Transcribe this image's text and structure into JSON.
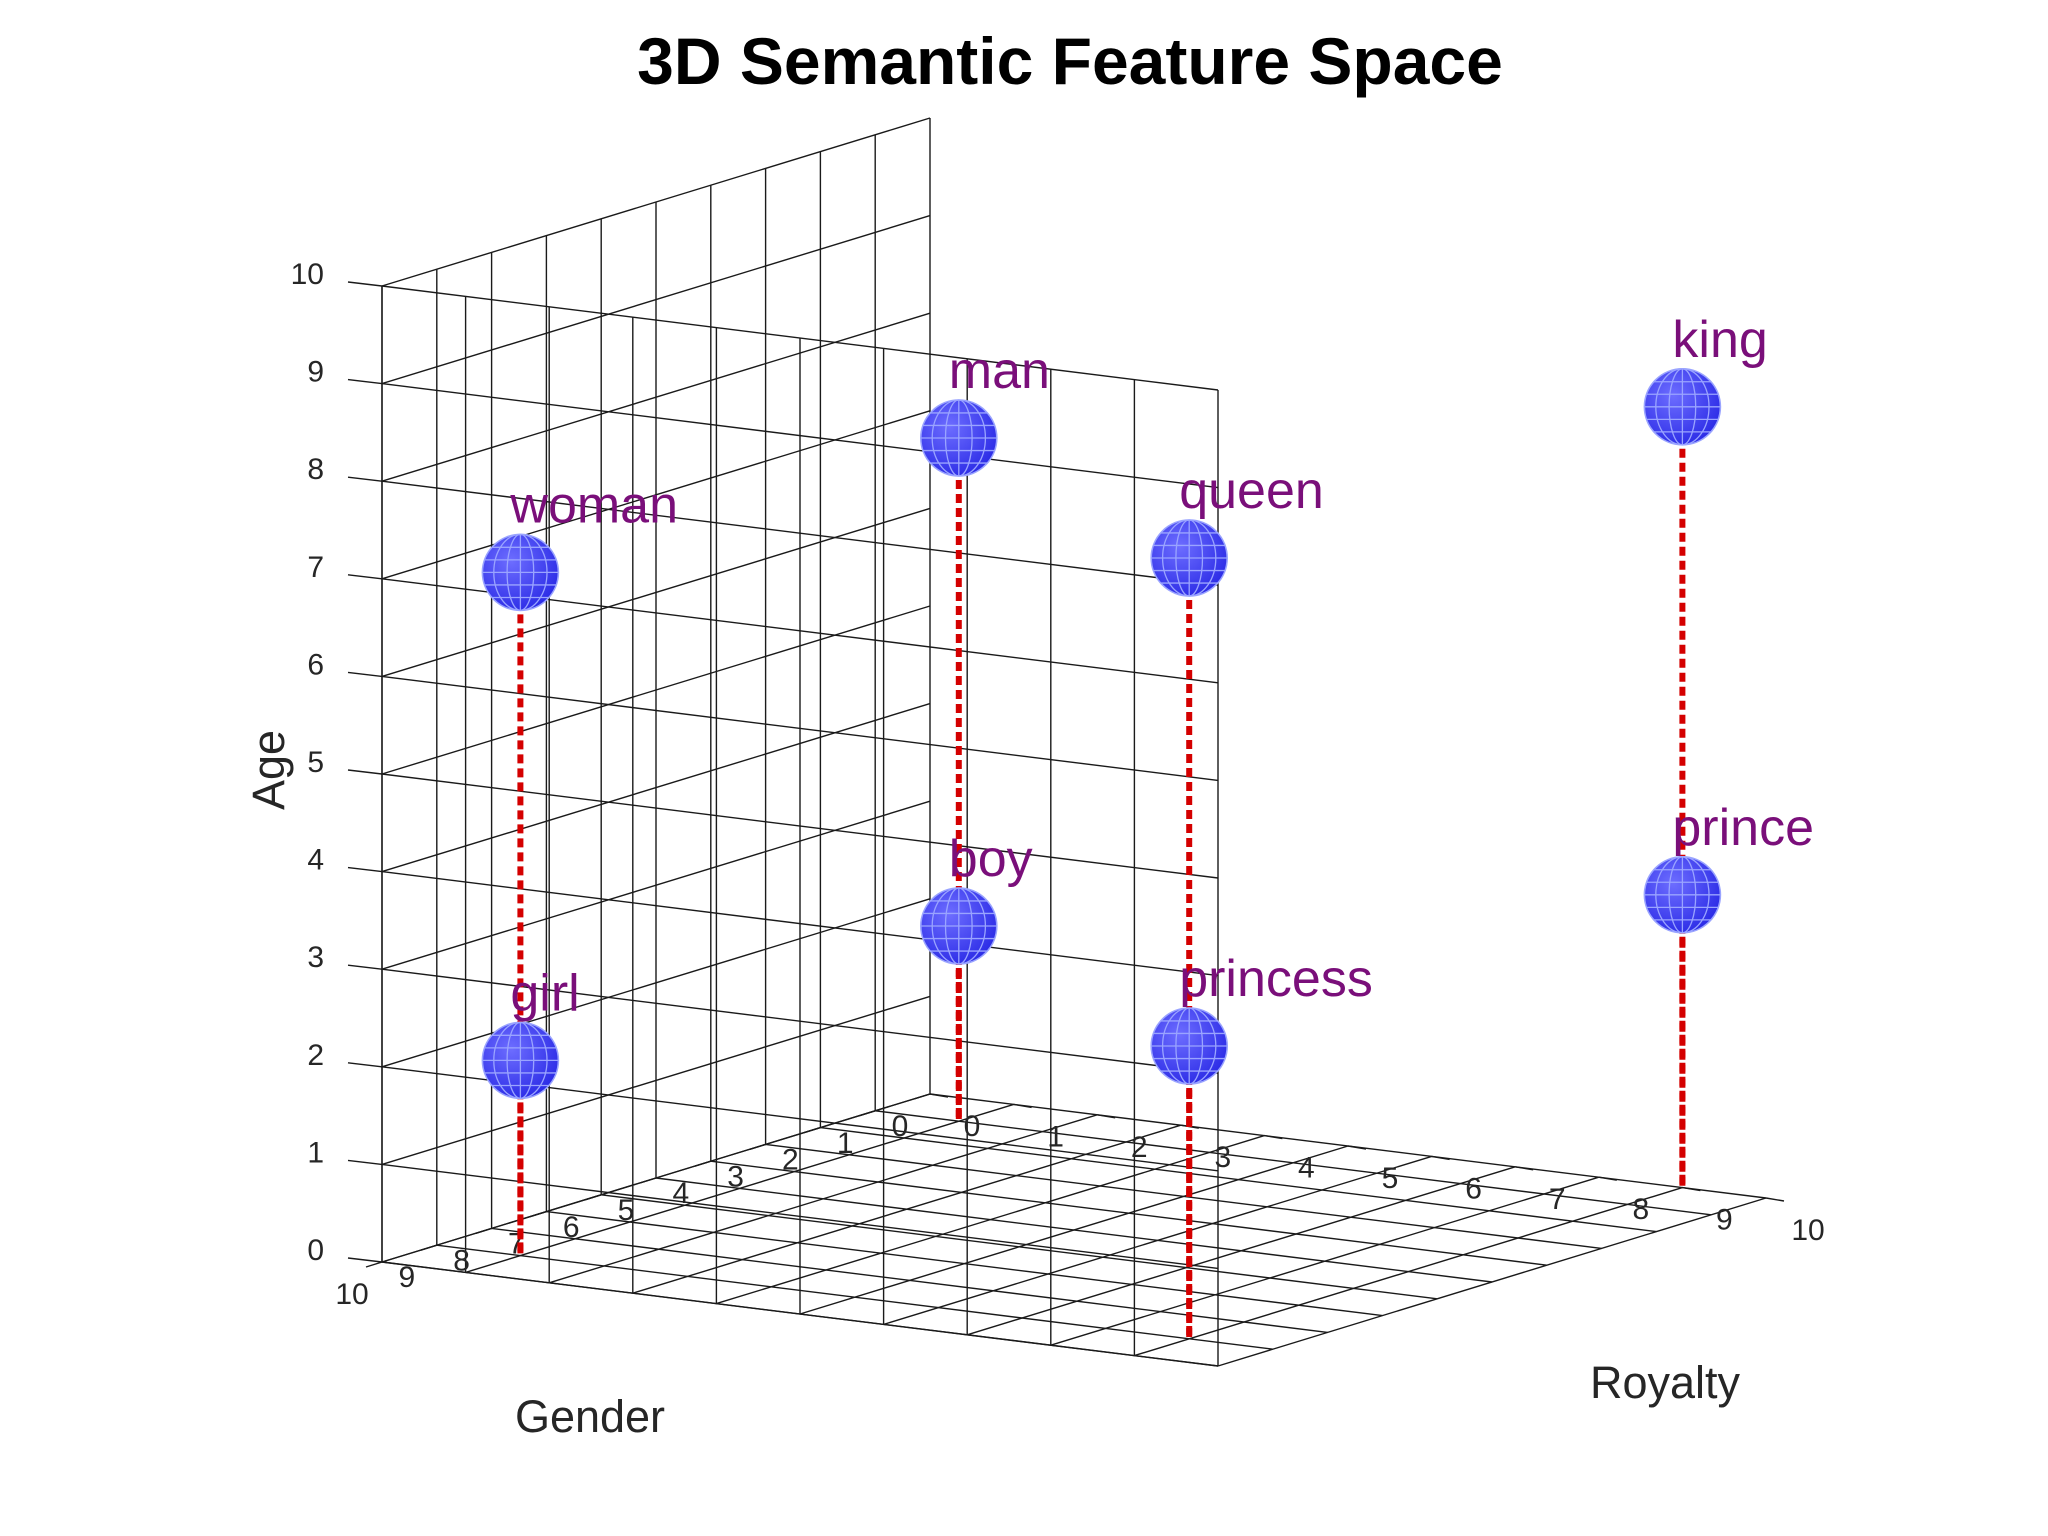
{
  "chart_data": {
    "type": "scatter",
    "projection": "3d",
    "title": "3D Semantic Feature Space",
    "xlabel": "Royalty",
    "ylabel": "Gender",
    "zlabel": "Age",
    "xlim": [
      0,
      10
    ],
    "ylim": [
      0,
      10
    ],
    "zlim": [
      0,
      10
    ],
    "ticks": [
      "0",
      "1",
      "2",
      "3",
      "4",
      "5",
      "6",
      "7",
      "8",
      "9",
      "10"
    ],
    "grid": true,
    "stems": true,
    "points": [
      {
        "label": "king",
        "royalty": 9,
        "gender": 0,
        "age": 8
      },
      {
        "label": "queen",
        "royalty": 9,
        "gender": 9,
        "age": 8
      },
      {
        "label": "man",
        "royalty": 1,
        "gender": 1,
        "age": 7
      },
      {
        "label": "woman",
        "royalty": 1,
        "gender": 9,
        "age": 7
      },
      {
        "label": "prince",
        "royalty": 9,
        "gender": 0,
        "age": 3
      },
      {
        "label": "princess",
        "royalty": 9,
        "gender": 9,
        "age": 3
      },
      {
        "label": "boy",
        "royalty": 1,
        "gender": 1,
        "age": 2
      },
      {
        "label": "girl",
        "royalty": 1,
        "gender": 9,
        "age": 2
      }
    ],
    "colors": {
      "marker": "#3d3dfa",
      "marker_mesh": "#9aa4ff",
      "stem": "#d40000",
      "label": "#7a0f7a",
      "grid": "#1a1a1a"
    }
  }
}
